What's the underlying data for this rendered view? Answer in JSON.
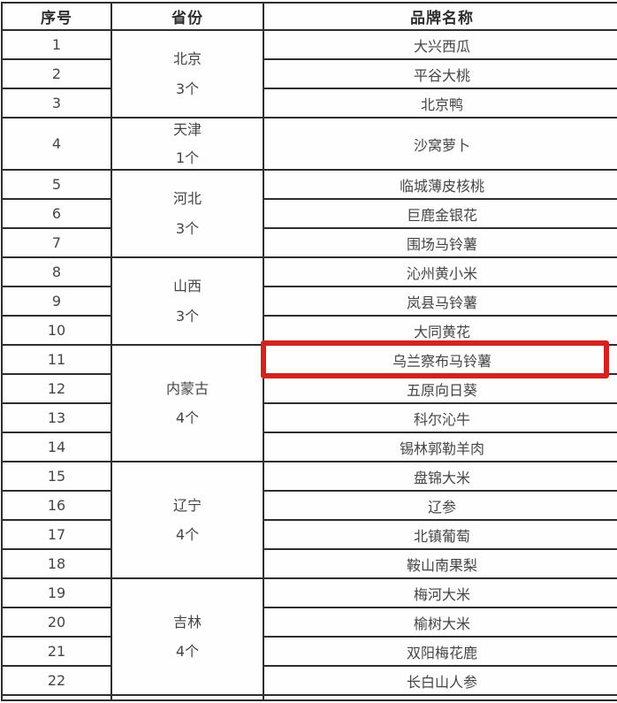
{
  "table": {
    "headers": [
      "序号",
      "省份",
      "品牌名称"
    ],
    "highlight_color": "#d3231f",
    "groups": [
      {
        "province": "北京",
        "count": "3个",
        "brands": [
          {
            "no": "1",
            "name": "大兴西瓜"
          },
          {
            "no": "2",
            "name": "平谷大桃"
          },
          {
            "no": "3",
            "name": "北京鸭"
          }
        ]
      },
      {
        "province": "天津",
        "count": "1个",
        "brands": [
          {
            "no": "4",
            "name": "沙窝萝卜"
          }
        ]
      },
      {
        "province": "河北",
        "count": "3个",
        "brands": [
          {
            "no": "5",
            "name": "临城薄皮核桃"
          },
          {
            "no": "6",
            "name": "巨鹿金银花"
          },
          {
            "no": "7",
            "name": "围场马铃薯"
          }
        ]
      },
      {
        "province": "山西",
        "count": "3个",
        "brands": [
          {
            "no": "8",
            "name": "沁州黄小米"
          },
          {
            "no": "9",
            "name": "岚县马铃薯"
          },
          {
            "no": "10",
            "name": "大同黄花"
          }
        ]
      },
      {
        "province": "内蒙古",
        "count": "4个",
        "brands": [
          {
            "no": "11",
            "name": "乌兰察布马铃薯",
            "highlighted": true
          },
          {
            "no": "12",
            "name": "五原向日葵"
          },
          {
            "no": "13",
            "name": "科尔沁牛"
          },
          {
            "no": "14",
            "name": "锡林郭勒羊肉"
          }
        ]
      },
      {
        "province": "辽宁",
        "count": "4个",
        "brands": [
          {
            "no": "15",
            "name": "盘锦大米"
          },
          {
            "no": "16",
            "name": "辽参"
          },
          {
            "no": "17",
            "name": "北镇葡萄"
          },
          {
            "no": "18",
            "name": "鞍山南果梨"
          }
        ]
      },
      {
        "province": "吉林",
        "count": "4个",
        "brands": [
          {
            "no": "19",
            "name": "梅河大米"
          },
          {
            "no": "20",
            "name": "榆树大米"
          },
          {
            "no": "21",
            "name": "双阳梅花鹿"
          },
          {
            "no": "22",
            "name": "长白山人参"
          }
        ]
      }
    ]
  }
}
